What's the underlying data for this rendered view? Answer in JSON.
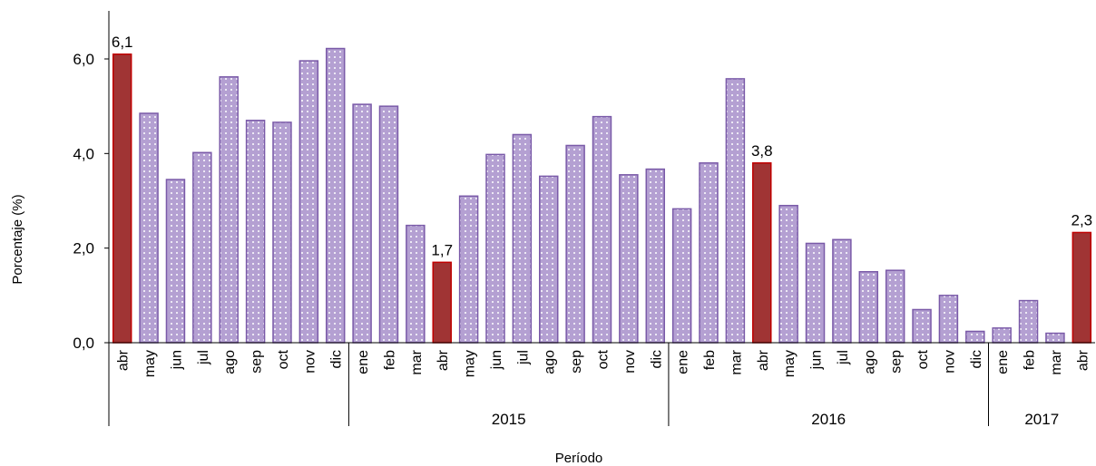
{
  "chart_data": {
    "type": "bar",
    "xlabel": "Período",
    "ylabel": "Porcentaje (%)",
    "ylim": [
      0,
      7
    ],
    "yticks": [
      "0,0",
      "2,0",
      "4,0",
      "6,0"
    ],
    "ytick_values": [
      0,
      2,
      4,
      6
    ],
    "grid": false,
    "colors": {
      "normal_fill": "#b4a0d2",
      "normal_stroke": "#7a5aa8",
      "highlight_fill": "#a03434",
      "highlight_stroke": "#c00000",
      "dot": "#ffffff"
    },
    "groups": [
      {
        "label": "",
        "months": [
          "abr",
          "may",
          "jun",
          "jul",
          "ago",
          "sep",
          "oct",
          "nov",
          "dic"
        ]
      },
      {
        "label": "2015",
        "months": [
          "ene",
          "feb",
          "mar",
          "abr",
          "may",
          "jun",
          "jul",
          "ago",
          "sep",
          "oct",
          "nov",
          "dic"
        ]
      },
      {
        "label": "2016",
        "months": [
          "ene",
          "feb",
          "mar",
          "abr",
          "may",
          "jun",
          "jul",
          "ago",
          "sep",
          "oct",
          "nov",
          "dic"
        ]
      },
      {
        "label": "2017",
        "months": [
          "ene",
          "feb",
          "mar",
          "abr"
        ]
      }
    ],
    "values": [
      6.1,
      4.85,
      3.45,
      4.02,
      5.62,
      4.7,
      4.66,
      5.96,
      6.22,
      5.04,
      5.0,
      2.48,
      1.7,
      3.1,
      3.98,
      4.4,
      3.52,
      4.17,
      4.78,
      3.55,
      3.67,
      2.83,
      3.8,
      5.58,
      3.8,
      2.9,
      2.1,
      2.18,
      1.5,
      1.53,
      0.7,
      1.0,
      0.24,
      0.31,
      0.89,
      0.2,
      2.33
    ],
    "highlighted": [
      0,
      12,
      24,
      36
    ],
    "data_labels": [
      {
        "index": 0,
        "text": "6,1"
      },
      {
        "index": 12,
        "text": "1,7"
      },
      {
        "index": 24,
        "text": "3,8"
      },
      {
        "index": 36,
        "text": "2,3"
      }
    ]
  }
}
